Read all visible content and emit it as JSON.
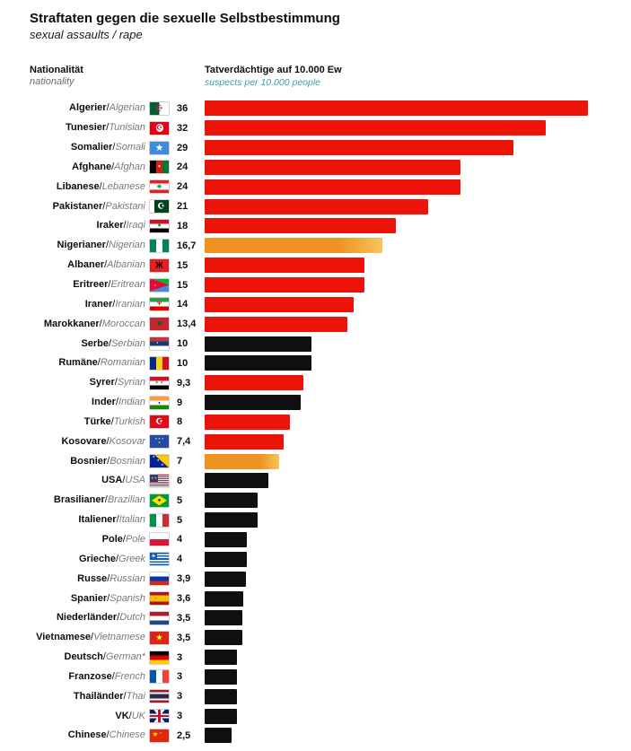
{
  "title": "Straftaten gegen die sexuelle Selbstbestimmung",
  "subtitle": "sexual assaults / rape",
  "col_headers": {
    "nationality_de": "Nationalität",
    "nationality_en": "nationality",
    "value_de": "Tatverdächtige auf 10.000 Ew",
    "value_en": "suspects per 10.000 people"
  },
  "colors": {
    "red": "#ec1309",
    "black": "#0f0f0f",
    "orange_from": "#ef9320",
    "orange_to": "#f9c35c",
    "teal": "#3d9ab0"
  },
  "chart_data": {
    "type": "bar",
    "orientation": "horizontal",
    "title": "Straftaten gegen die sexuelle Selbstbestimmung",
    "subtitle": "sexual assaults / rape",
    "xlabel": "Tatverdächtige auf 10.000 Ew (suspects per 10.000 people)",
    "xlim": [
      0,
      36
    ],
    "grid": false,
    "legend": "none",
    "rows": [
      {
        "de": "Algerier",
        "en": "Algerian",
        "flag": "dz",
        "value": 36,
        "display": "36",
        "color": "red"
      },
      {
        "de": "Tunesier",
        "en": "Tunisian",
        "flag": "tn",
        "value": 32,
        "display": "32",
        "color": "red"
      },
      {
        "de": "Somalier",
        "en": "Somali",
        "flag": "so",
        "value": 29,
        "display": "29",
        "color": "red"
      },
      {
        "de": "Afghane",
        "en": "Afghan",
        "flag": "af",
        "value": 24,
        "display": "24",
        "color": "red"
      },
      {
        "de": "Libanese",
        "en": "Lebanese",
        "flag": "lb",
        "value": 24,
        "display": "24",
        "color": "red"
      },
      {
        "de": "Pakistaner",
        "en": "Pakistani",
        "flag": "pk",
        "value": 21,
        "display": "21",
        "color": "red"
      },
      {
        "de": "Iraker",
        "en": "Iraqi",
        "flag": "iq",
        "value": 18,
        "display": "18",
        "color": "red"
      },
      {
        "de": "Nigerianer",
        "en": "Nigerian",
        "flag": "ng",
        "value": 16.7,
        "display": "16,7",
        "color": "orange"
      },
      {
        "de": "Albaner",
        "en": "Albanian",
        "flag": "al",
        "value": 15,
        "display": "15",
        "color": "red"
      },
      {
        "de": "Eritreer",
        "en": "Eritrean",
        "flag": "er",
        "value": 15,
        "display": "15",
        "color": "red"
      },
      {
        "de": "Iraner",
        "en": "Iranian",
        "flag": "ir",
        "value": 14,
        "display": "14",
        "color": "red"
      },
      {
        "de": "Marokkaner",
        "en": "Moroccan",
        "flag": "ma",
        "value": 13.4,
        "display": "13,4",
        "color": "red"
      },
      {
        "de": "Serbe",
        "en": "Serbian",
        "flag": "rs",
        "value": 10,
        "display": "10",
        "color": "black"
      },
      {
        "de": "Rumäne",
        "en": "Romanian",
        "flag": "ro",
        "value": 10,
        "display": "10",
        "color": "black"
      },
      {
        "de": "Syrer",
        "en": "Syrian",
        "flag": "sy",
        "value": 9.3,
        "display": "9,3",
        "color": "red"
      },
      {
        "de": "Inder",
        "en": "Indian",
        "flag": "in",
        "value": 9,
        "display": "9",
        "color": "black"
      },
      {
        "de": "Türke",
        "en": "Turkish",
        "flag": "tr",
        "value": 8,
        "display": "8",
        "color": "red"
      },
      {
        "de": "Kosovare",
        "en": "Kosovar",
        "flag": "xk",
        "value": 7.4,
        "display": "7,4",
        "color": "red"
      },
      {
        "de": "Bosnier",
        "en": "Bosnian",
        "flag": "ba",
        "value": 7,
        "display": "7",
        "color": "orange"
      },
      {
        "de": "USA",
        "en": "USA",
        "flag": "us",
        "value": 6,
        "display": "6",
        "color": "black"
      },
      {
        "de": "Brasilianer",
        "en": "Brazilian",
        "flag": "br",
        "value": 5,
        "display": "5",
        "color": "black"
      },
      {
        "de": "Italiener",
        "en": "Italian",
        "flag": "it",
        "value": 5,
        "display": "5",
        "color": "black"
      },
      {
        "de": "Pole",
        "en": "Pole",
        "flag": "pl",
        "value": 4,
        "display": "4",
        "color": "black"
      },
      {
        "de": "Grieche",
        "en": "Greek",
        "flag": "gr",
        "value": 4,
        "display": "4",
        "color": "black"
      },
      {
        "de": "Russe",
        "en": "Russian",
        "flag": "ru",
        "value": 3.9,
        "display": "3,9",
        "color": "black"
      },
      {
        "de": "Spanier",
        "en": "Spanish",
        "flag": "es",
        "value": 3.6,
        "display": "3,6",
        "color": "black"
      },
      {
        "de": "Niederländer",
        "en": "Dutch",
        "flag": "nl",
        "value": 3.5,
        "display": "3,5",
        "color": "black"
      },
      {
        "de": "Vietnamese",
        "en": "Vietnamese",
        "flag": "vn",
        "value": 3.5,
        "display": "3,5",
        "color": "black"
      },
      {
        "de": "Deutsch",
        "en": "German*",
        "flag": "de",
        "value": 3,
        "display": "3",
        "color": "black"
      },
      {
        "de": "Franzose",
        "en": "French",
        "flag": "fr",
        "value": 3,
        "display": "3",
        "color": "black"
      },
      {
        "de": "Thailänder",
        "en": "Thai",
        "flag": "th",
        "value": 3,
        "display": "3",
        "color": "black"
      },
      {
        "de": "VK",
        "en": "UK",
        "flag": "gb",
        "value": 3,
        "display": "3",
        "color": "black"
      },
      {
        "de": "Chinese",
        "en": "Chinese",
        "flag": "cn",
        "value": 2.5,
        "display": "2,5",
        "color": "black"
      }
    ]
  },
  "flags": {
    "dz": {
      "bg": "linear-gradient(90deg,#006233 50%,#ffffff 50%)",
      "emblems": [
        {
          "ch": "☪",
          "color": "#d21034",
          "size": 9
        }
      ]
    },
    "tn": {
      "bg": "#e70013",
      "overlays": [
        {
          "rect": [
            "31%",
            "18%",
            "40%",
            "64%"
          ],
          "color": "#ffffff",
          "radius": "50%"
        }
      ],
      "emblems": [
        {
          "ch": "☪",
          "color": "#e70013",
          "size": 7
        }
      ]
    },
    "so": {
      "bg": "#4189dd",
      "emblems": [
        {
          "ch": "★",
          "color": "#ffffff",
          "size": 9
        }
      ]
    },
    "af": {
      "bg": "linear-gradient(90deg,#000000 33.3%,#d32011 33.3% 66.6%,#007a36 66.6%)",
      "emblems": [
        {
          "ch": "●",
          "color": "#ffffff",
          "size": 5
        }
      ]
    },
    "lb": {
      "bg": "linear-gradient(180deg,#ed1c24 25%,#ffffff 25% 75%,#ed1c24 75%)",
      "emblems": [
        {
          "ch": "♣",
          "color": "#00a651",
          "size": 8
        }
      ]
    },
    "pk": {
      "bg": "linear-gradient(90deg,#ffffff 25%,#01411c 25%)",
      "emblems": [
        {
          "ch": "☪",
          "color": "#ffffff",
          "size": 9,
          "x": "60%"
        }
      ]
    },
    "iq": {
      "bg": "linear-gradient(180deg,#ce1126 33.3%,#ffffff 33.3% 66.6%,#000000 66.6%)",
      "emblems": [
        {
          "ch": "★",
          "color": "#007a3d",
          "size": 5
        }
      ]
    },
    "ng": {
      "bg": "linear-gradient(90deg,#008751 33.3%,#ffffff 33.3% 66.6%,#008751 66.6%)"
    },
    "al": {
      "bg": "#e41e20",
      "emblems": [
        {
          "ch": "Ж",
          "color": "#000000",
          "size": 9
        }
      ]
    },
    "er": {
      "bg": "linear-gradient(180deg,#12ad2b 50%,#4189dd 50%)",
      "overlays": [
        {
          "clip": "polygon(0 0,100% 50%,0 100%)",
          "color": "#ea0437"
        }
      ],
      "emblems": [
        {
          "ch": "●",
          "color": "#ffc726",
          "size": 4,
          "x": "28%"
        }
      ]
    },
    "ir": {
      "bg": "linear-gradient(180deg,#239f40 33.3%,#ffffff 33.3% 66.6%,#da0000 66.6%)",
      "emblems": [
        {
          "ch": "Ψ",
          "color": "#da0000",
          "size": 6
        }
      ]
    },
    "ma": {
      "bg": "#c1272d",
      "emblems": [
        {
          "ch": "★",
          "color": "#006233",
          "size": 8
        }
      ]
    },
    "rs": {
      "bg": "linear-gradient(180deg,#c6363c 33.3%,#0c4076 33.3% 66.6%,#ffffff 66.6%)",
      "emblems": [
        {
          "ch": "▪",
          "color": "#ffffff",
          "size": 5,
          "x": "40%"
        }
      ]
    },
    "ro": {
      "bg": "linear-gradient(90deg,#002b7f 33.3%,#fcd116 33.3% 66.6%,#ce1126 66.6%)"
    },
    "sy": {
      "bg": "linear-gradient(180deg,#ce1126 33.3%,#ffffff 33.3% 66.6%,#000000 66.6%)",
      "emblems": [
        {
          "ch": "⋆ ⋆",
          "color": "#007a3d",
          "size": 6
        }
      ]
    },
    "in": {
      "bg": "linear-gradient(180deg,#ff9933 33.3%,#ffffff 33.3% 66.6%,#138808 66.6%)",
      "emblems": [
        {
          "ch": "●",
          "color": "#000080",
          "size": 4
        }
      ]
    },
    "tr": {
      "bg": "#e30a17",
      "emblems": [
        {
          "ch": "☪",
          "color": "#ffffff",
          "size": 9
        }
      ]
    },
    "xk": {
      "bg": "#244aa5",
      "emblems": [
        {
          "ch": "⋆ ⋆ ⋆",
          "color": "#ffffff",
          "size": 4,
          "y": "28%"
        },
        {
          "ch": "●",
          "color": "#d0a650",
          "size": 5,
          "y": "62%"
        }
      ]
    },
    "ba": {
      "bg": "#002395",
      "overlays": [
        {
          "clip": "polygon(25% 0,100% 0,100% 100%)",
          "color": "#fecb00"
        }
      ],
      "emblems": [
        {
          "ch": "⋆",
          "color": "#ffffff",
          "size": 5,
          "x": "20%",
          "y": "20%"
        },
        {
          "ch": "⋆",
          "color": "#ffffff",
          "size": 5,
          "x": "44%",
          "y": "52%"
        },
        {
          "ch": "⋆",
          "color": "#ffffff",
          "size": 5,
          "x": "66%",
          "y": "84%"
        }
      ]
    },
    "us": {
      "bg": "repeating-linear-gradient(180deg,#b22234 0 1px,#ffffff 1px 2px)",
      "overlays": [
        {
          "rect": [
            "0",
            "0",
            "45%",
            "57%"
          ],
          "color": "#3c3b6e"
        }
      ],
      "emblems": [
        {
          "ch": "⋆ ⋆",
          "color": "#ffffff",
          "size": 4,
          "x": "22%",
          "y": "28%"
        }
      ]
    },
    "br": {
      "bg": "#009c3b",
      "overlays": [
        {
          "clip": "polygon(50% 10%,90% 50%,50% 90%,10% 50%)",
          "color": "#ffdf00"
        }
      ],
      "emblems": [
        {
          "ch": "●",
          "color": "#002776",
          "size": 6
        }
      ]
    },
    "it": {
      "bg": "linear-gradient(90deg,#009246 33.3%,#ffffff 33.3% 66.6%,#ce2b37 66.6%)"
    },
    "pl": {
      "bg": "linear-gradient(180deg,#ffffff 50%,#dc143c 50%)"
    },
    "gr": {
      "bg": "repeating-linear-gradient(180deg,#0d5eaf 0 1.6px,#ffffff 1.6px 3.1px)",
      "overlays": [
        {
          "rect": [
            "0",
            "0",
            "40%",
            "57%"
          ],
          "color": "#0d5eaf"
        }
      ],
      "emblems": [
        {
          "ch": "+",
          "color": "#ffffff",
          "size": 8,
          "x": "19%",
          "y": "28%"
        }
      ]
    },
    "ru": {
      "bg": "linear-gradient(180deg,#ffffff 33.3%,#0039a6 33.3% 66.6%,#d52b1e 66.6%)"
    },
    "es": {
      "bg": "linear-gradient(180deg,#aa151b 25%,#f1bf00 25% 75%,#aa151b 75%)",
      "emblems": [
        {
          "ch": "▪",
          "color": "#aa151b",
          "size": 4,
          "x": "30%"
        }
      ]
    },
    "nl": {
      "bg": "linear-gradient(180deg,#ae1c28 33.3%,#ffffff 33.3% 66.6%,#21468b 66.6%)"
    },
    "vn": {
      "bg": "#da251d",
      "emblems": [
        {
          "ch": "★",
          "color": "#ffff00",
          "size": 8
        }
      ]
    },
    "de": {
      "bg": "linear-gradient(180deg,#000000 33.3%,#dd0000 33.3% 66.6%,#ffce00 66.6%)"
    },
    "fr": {
      "bg": "linear-gradient(90deg,#0055a4 33.3%,#ffffff 33.3% 66.6%,#ef4135 66.6%)"
    },
    "th": {
      "bg": "linear-gradient(180deg,#a51931 16.6%,#f4f5f8 16.6% 33.3%,#2d2a4a 33.3% 66.6%,#f4f5f8 66.6% 83.3%,#a51931 83.3%)"
    },
    "gb": {
      "bg": "linear-gradient(180deg,transparent 42%,#c8102e 42% 58%,transparent 58%),linear-gradient(90deg,transparent 43%,#c8102e 43% 57%,transparent 57%),linear-gradient(180deg,transparent 33%,#ffffff 33% 67%,transparent 67%),linear-gradient(90deg,transparent 36%,#ffffff 36% 64%,transparent 64%),linear-gradient(56deg,transparent 46%,#ffffff 46% 54%,transparent 54%),linear-gradient(-56deg,transparent 46%,#ffffff 46% 54%,transparent 54%),#012169"
    },
    "cn": {
      "bg": "#de2910",
      "emblems": [
        {
          "ch": "★",
          "color": "#ffde00",
          "size": 7,
          "x": "28%",
          "y": "45%"
        },
        {
          "ch": "⋆",
          "color": "#ffde00",
          "size": 4,
          "x": "58%",
          "y": "28%"
        }
      ]
    }
  }
}
